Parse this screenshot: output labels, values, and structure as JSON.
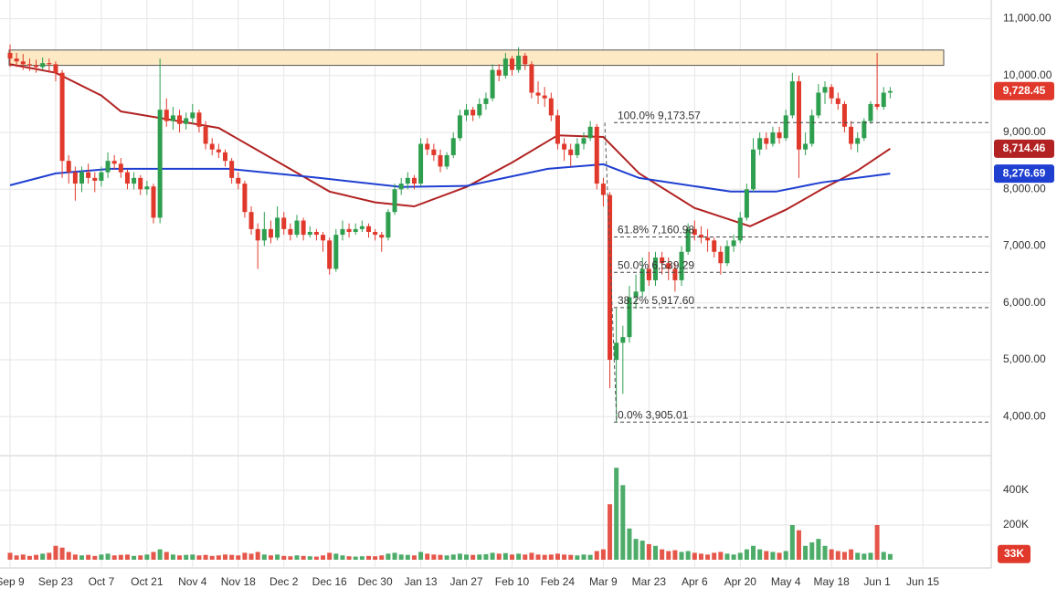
{
  "chart_data": {
    "type": "candlestick",
    "colors": {
      "up": "#2e9e4f",
      "down": "#e0392b"
    },
    "xlim": [
      0,
      301
    ],
    "xticks": [
      {
        "value": 0,
        "label": "Sep 9"
      },
      {
        "value": 14,
        "label": "Sep 23"
      },
      {
        "value": 28,
        "label": "Oct 7"
      },
      {
        "value": 42,
        "label": "Oct 21"
      },
      {
        "value": 56,
        "label": "Nov 4"
      },
      {
        "value": 70,
        "label": "Nov 18"
      },
      {
        "value": 84,
        "label": "Dec 2"
      },
      {
        "value": 98,
        "label": "Dec 16"
      },
      {
        "value": 112,
        "label": "Dec 30"
      },
      {
        "value": 126,
        "label": "Jan 13"
      },
      {
        "value": 140,
        "label": "Jan 27"
      },
      {
        "value": 154,
        "label": "Feb 10"
      },
      {
        "value": 168,
        "label": "Feb 24"
      },
      {
        "value": 182,
        "label": "Mar 9"
      },
      {
        "value": 196,
        "label": "Mar 23"
      },
      {
        "value": 210,
        "label": "Apr 6"
      },
      {
        "value": 224,
        "label": "Apr 20"
      },
      {
        "value": 238,
        "label": "May 4"
      },
      {
        "value": 252,
        "label": "May 18"
      },
      {
        "value": 266,
        "label": "Jun 1"
      },
      {
        "value": 280,
        "label": "Jun 15"
      }
    ],
    "ylim": [
      3330,
      11250
    ],
    "yticks": [
      {
        "value": 4000,
        "label": "4,000.00"
      },
      {
        "value": 5000,
        "label": "5,000.00"
      },
      {
        "value": 6000,
        "label": "6,000.00"
      },
      {
        "value": 7000,
        "label": "7,000.00"
      },
      {
        "value": 8000,
        "label": "8,000.00"
      },
      {
        "value": 9000,
        "label": "9,000.00"
      },
      {
        "value": 10000,
        "label": "10,000.00"
      },
      {
        "value": 11000,
        "label": "11,000.00"
      }
    ],
    "vlim": [
      0,
      600000
    ],
    "vticks": [
      {
        "value": 200000,
        "label": "200K"
      },
      {
        "value": 400000,
        "label": "400K"
      }
    ],
    "grid": true,
    "zone": [
      10180,
      10450
    ],
    "x": [
      0,
      2,
      4,
      6,
      8,
      10,
      12,
      14,
      16,
      18,
      20,
      22,
      24,
      26,
      28,
      30,
      32,
      34,
      36,
      38,
      40,
      42,
      44,
      46,
      48,
      50,
      52,
      54,
      56,
      58,
      60,
      62,
      64,
      66,
      68,
      70,
      72,
      74,
      76,
      78,
      80,
      82,
      84,
      86,
      88,
      90,
      92,
      94,
      96,
      98,
      100,
      102,
      104,
      106,
      108,
      110,
      112,
      114,
      116,
      118,
      120,
      122,
      124,
      126,
      128,
      130,
      132,
      134,
      136,
      138,
      140,
      142,
      144,
      146,
      148,
      150,
      152,
      154,
      156,
      158,
      160,
      162,
      164,
      166,
      168,
      170,
      172,
      174,
      176,
      178,
      180,
      182,
      184,
      186,
      188,
      190,
      192,
      194,
      196,
      198,
      200,
      202,
      204,
      206,
      208,
      210,
      212,
      214,
      216,
      218,
      220,
      222,
      224,
      226,
      228,
      230,
      232,
      234,
      236,
      238,
      240,
      242,
      244,
      246,
      248,
      250,
      252,
      254,
      256,
      258,
      260,
      262,
      264,
      266,
      268,
      270
    ],
    "ohlc": [
      [
        10400,
        10550,
        10150,
        10300
      ],
      [
        10300,
        10400,
        10150,
        10250
      ],
      [
        10250,
        10380,
        10100,
        10200
      ],
      [
        10200,
        10300,
        10080,
        10180
      ],
      [
        10180,
        10280,
        10050,
        10150
      ],
      [
        10150,
        10320,
        10100,
        10220
      ],
      [
        10220,
        10300,
        10050,
        10200
      ],
      [
        10200,
        10250,
        9900,
        10050
      ],
      [
        10050,
        10100,
        8200,
        8500
      ],
      [
        8500,
        8600,
        8100,
        8300
      ],
      [
        8300,
        8400,
        7800,
        8100
      ],
      [
        8100,
        8400,
        7950,
        8300
      ],
      [
        8300,
        8450,
        8100,
        8200
      ],
      [
        8200,
        8300,
        7950,
        8150
      ],
      [
        8150,
        8400,
        8050,
        8300
      ],
      [
        8300,
        8650,
        8200,
        8500
      ],
      [
        8500,
        8600,
        8350,
        8450
      ],
      [
        8450,
        8550,
        8200,
        8300
      ],
      [
        8300,
        8350,
        8000,
        8100
      ],
      [
        8100,
        8300,
        8000,
        8200
      ],
      [
        8200,
        8250,
        7900,
        8000
      ],
      [
        8000,
        8150,
        7900,
        8050
      ],
      [
        8050,
        8100,
        7400,
        7500
      ],
      [
        7500,
        10300,
        7400,
        9400
      ],
      [
        9400,
        9600,
        9100,
        9200
      ],
      [
        9200,
        9450,
        9050,
        9300
      ],
      [
        9300,
        9400,
        9000,
        9150
      ],
      [
        9150,
        9350,
        9050,
        9250
      ],
      [
        9250,
        9500,
        9150,
        9350
      ],
      [
        9350,
        9400,
        9000,
        9100
      ],
      [
        9100,
        9200,
        8700,
        8800
      ],
      [
        8800,
        8900,
        8600,
        8700
      ],
      [
        8700,
        8800,
        8550,
        8650
      ],
      [
        8650,
        8700,
        8400,
        8500
      ],
      [
        8500,
        8550,
        8100,
        8200
      ],
      [
        8200,
        8300,
        8000,
        8100
      ],
      [
        8100,
        8150,
        7500,
        7600
      ],
      [
        7600,
        7700,
        7200,
        7300
      ],
      [
        7300,
        7400,
        6600,
        7100
      ],
      [
        7100,
        7600,
        7000,
        7300
      ],
      [
        7300,
        7450,
        7050,
        7150
      ],
      [
        7150,
        7700,
        7100,
        7500
      ],
      [
        7500,
        7600,
        7200,
        7300
      ],
      [
        7300,
        7400,
        7100,
        7200
      ],
      [
        7200,
        7550,
        7150,
        7450
      ],
      [
        7450,
        7500,
        7100,
        7200
      ],
      [
        7200,
        7350,
        7150,
        7250
      ],
      [
        7250,
        7300,
        7100,
        7200
      ],
      [
        7200,
        7250,
        6900,
        7100
      ],
      [
        7100,
        7150,
        6500,
        6600
      ],
      [
        6600,
        7300,
        6550,
        7200
      ],
      [
        7200,
        7450,
        7100,
        7300
      ],
      [
        7300,
        7400,
        7150,
        7250
      ],
      [
        7250,
        7400,
        7200,
        7300
      ],
      [
        7300,
        7450,
        7250,
        7350
      ],
      [
        7350,
        7400,
        7150,
        7250
      ],
      [
        7250,
        7300,
        7100,
        7200
      ],
      [
        7200,
        7250,
        6900,
        7150
      ],
      [
        7150,
        7650,
        7100,
        7600
      ],
      [
        7600,
        8100,
        7550,
        8000
      ],
      [
        8000,
        8200,
        7900,
        8100
      ],
      [
        8100,
        8300,
        8000,
        8200
      ],
      [
        8200,
        8250,
        8000,
        8100
      ],
      [
        8100,
        8900,
        8050,
        8800
      ],
      [
        8800,
        8900,
        8600,
        8700
      ],
      [
        8700,
        8800,
        8500,
        8600
      ],
      [
        8600,
        8700,
        8300,
        8400
      ],
      [
        8400,
        8650,
        8350,
        8600
      ],
      [
        8600,
        9000,
        8550,
        8900
      ],
      [
        8900,
        9400,
        8850,
        9300
      ],
      [
        9300,
        9500,
        9200,
        9400
      ],
      [
        9400,
        9450,
        9200,
        9300
      ],
      [
        9300,
        9600,
        9250,
        9500
      ],
      [
        9500,
        9700,
        9400,
        9600
      ],
      [
        9600,
        10200,
        9550,
        10100
      ],
      [
        10100,
        10200,
        9900,
        10000
      ],
      [
        10000,
        10400,
        9950,
        10300
      ],
      [
        10300,
        10350,
        10000,
        10100
      ],
      [
        10100,
        10500,
        10050,
        10350
      ],
      [
        10350,
        10400,
        10100,
        10200
      ],
      [
        10200,
        10250,
        9600,
        9700
      ],
      [
        9700,
        9900,
        9500,
        9650
      ],
      [
        9650,
        9800,
        9450,
        9600
      ],
      [
        9600,
        9700,
        9200,
        9300
      ],
      [
        9300,
        9400,
        8700,
        8800
      ],
      [
        8800,
        8900,
        8500,
        8700
      ],
      [
        8700,
        8800,
        8400,
        8600
      ],
      [
        8600,
        8900,
        8550,
        8800
      ],
      [
        8800,
        9000,
        8700,
        8900
      ],
      [
        8900,
        9200,
        8850,
        9100
      ],
      [
        9100,
        9150,
        8000,
        8100
      ],
      [
        8100,
        8200,
        7700,
        7900
      ],
      [
        7900,
        7950,
        4500,
        5000
      ],
      [
        5000,
        5900,
        3905.01,
        5300
      ],
      [
        5300,
        5600,
        4400,
        5400
      ],
      [
        5400,
        6300,
        5300,
        6100
      ],
      [
        6100,
        6500,
        5900,
        6200
      ],
      [
        6200,
        6800,
        6100,
        6600
      ],
      [
        6600,
        6900,
        6300,
        6400
      ],
      [
        6400,
        6900,
        6300,
        6800
      ],
      [
        6800,
        6900,
        6500,
        6700
      ],
      [
        6700,
        6800,
        6400,
        6600
      ],
      [
        6600,
        6700,
        6200,
        6400
      ],
      [
        6400,
        7000,
        6300,
        6900
      ],
      [
        6900,
        7400,
        6850,
        7300
      ],
      [
        7300,
        7450,
        7100,
        7200
      ],
      [
        7200,
        7350,
        7050,
        7150
      ],
      [
        7150,
        7300,
        6900,
        7100
      ],
      [
        7100,
        7150,
        6800,
        6900
      ],
      [
        6900,
        7000,
        6500,
        6700
      ],
      [
        6700,
        7100,
        6650,
        7000
      ],
      [
        7000,
        7200,
        6900,
        7100
      ],
      [
        7100,
        7600,
        7050,
        7500
      ],
      [
        7500,
        8100,
        7450,
        8000
      ],
      [
        8000,
        8900,
        7950,
        8700
      ],
      [
        8700,
        9000,
        8600,
        8900
      ],
      [
        8900,
        9000,
        8700,
        8800
      ],
      [
        8800,
        9100,
        8750,
        9000
      ],
      [
        9000,
        9100,
        8800,
        8900
      ],
      [
        8900,
        9400,
        8850,
        9300
      ],
      [
        9300,
        10050,
        9250,
        9900
      ],
      [
        9900,
        10000,
        8200,
        8700
      ],
      [
        8700,
        9000,
        8600,
        8800
      ],
      [
        8800,
        9400,
        8750,
        9300
      ],
      [
        9300,
        9850,
        9250,
        9700
      ],
      [
        9700,
        9900,
        9500,
        9800
      ],
      [
        9800,
        9850,
        9500,
        9600
      ],
      [
        9600,
        9700,
        9400,
        9500
      ],
      [
        9500,
        9550,
        9000,
        9100
      ],
      [
        9100,
        9200,
        8700,
        8800
      ],
      [
        8800,
        9000,
        8650,
        8900
      ],
      [
        8900,
        9250,
        8850,
        9200
      ],
      [
        9200,
        9550,
        9150,
        9500
      ],
      [
        9500,
        10400,
        9400,
        9450
      ],
      [
        9450,
        9800,
        9400,
        9700
      ],
      [
        9700,
        9800,
        9600,
        9728.45
      ]
    ],
    "volume": [
      40000,
      25000,
      30000,
      22000,
      28000,
      35000,
      40000,
      80000,
      70000,
      45000,
      30000,
      25000,
      28000,
      22000,
      30000,
      35000,
      25000,
      28000,
      30000,
      22000,
      25000,
      30000,
      45000,
      60000,
      45000,
      30000,
      25000,
      28000,
      30000,
      25000,
      28000,
      22000,
      25000,
      30000,
      28000,
      25000,
      40000,
      35000,
      45000,
      30000,
      25000,
      30000,
      22000,
      20000,
      25000,
      22000,
      20000,
      18000,
      25000,
      40000,
      35000,
      25000,
      20000,
      18000,
      20000,
      22000,
      20000,
      25000,
      35000,
      40000,
      30000,
      28000,
      25000,
      45000,
      35000,
      30000,
      28000,
      25000,
      30000,
      35000,
      30000,
      28000,
      30000,
      32000,
      40000,
      35000,
      38000,
      30000,
      35000,
      30000,
      40000,
      30000,
      28000,
      30000,
      35000,
      30000,
      28000,
      25000,
      30000,
      28000,
      50000,
      60000,
      320000,
      530000,
      430000,
      180000,
      120000,
      110000,
      90000,
      80000,
      60000,
      50000,
      55000,
      45000,
      50000,
      40000,
      35000,
      30000,
      40000,
      45000,
      35000,
      30000,
      40000,
      60000,
      80000,
      60000,
      50000,
      45000,
      40000,
      50000,
      200000,
      170000,
      80000,
      100000,
      120000,
      80000,
      60000,
      50000,
      45000,
      60000,
      40000,
      35000,
      40000,
      200000,
      45000,
      33000
    ],
    "series": [
      {
        "color": "#b22222",
        "x": [
          0,
          14,
          28,
          34,
          64,
          81,
          98,
          112,
          124,
          140,
          154,
          168,
          182,
          193,
          210,
          227,
          238,
          249,
          260,
          270
        ],
        "values": [
          10200,
          10050,
          9650,
          9370,
          9080,
          8520,
          7960,
          7770,
          7700,
          8040,
          8470,
          8950,
          8920,
          8280,
          7670,
          7350,
          7640,
          8000,
          8330,
          8714.46
        ]
      },
      {
        "color": "#1f3fd1",
        "x": [
          0,
          14,
          31,
          67,
          95,
          120,
          140,
          165,
          182,
          193,
          221,
          235,
          249,
          270
        ],
        "values": [
          8070,
          8280,
          8360,
          8360,
          8200,
          8040,
          8060,
          8360,
          8440,
          8200,
          7960,
          7960,
          8120,
          8276.69
        ]
      }
    ],
    "fib_levels": [
      {
        "value": 9173.57,
        "label": "100.0% 9,173.57"
      },
      {
        "value": 7160.98,
        "label": "61.8% 7,160.98"
      },
      {
        "value": 6539.29,
        "label": "50.0% 6,539.29"
      },
      {
        "value": 5917.6,
        "label": "38.2% 5,917.60"
      },
      {
        "value": 3905.01,
        "label": "0.0% 3,905.01"
      }
    ],
    "price_tags": [
      {
        "value": 9728.45,
        "label": "9,728.45",
        "color": "#e0392b"
      },
      {
        "value": 8714.46,
        "label": "8,714.46",
        "color": "#b22222"
      },
      {
        "value": 8276.69,
        "label": "8,276.69",
        "color": "#1f3fd1"
      }
    ],
    "volume_tag": {
      "value": 33000,
      "label": "33K",
      "color": "#e0392b"
    }
  }
}
